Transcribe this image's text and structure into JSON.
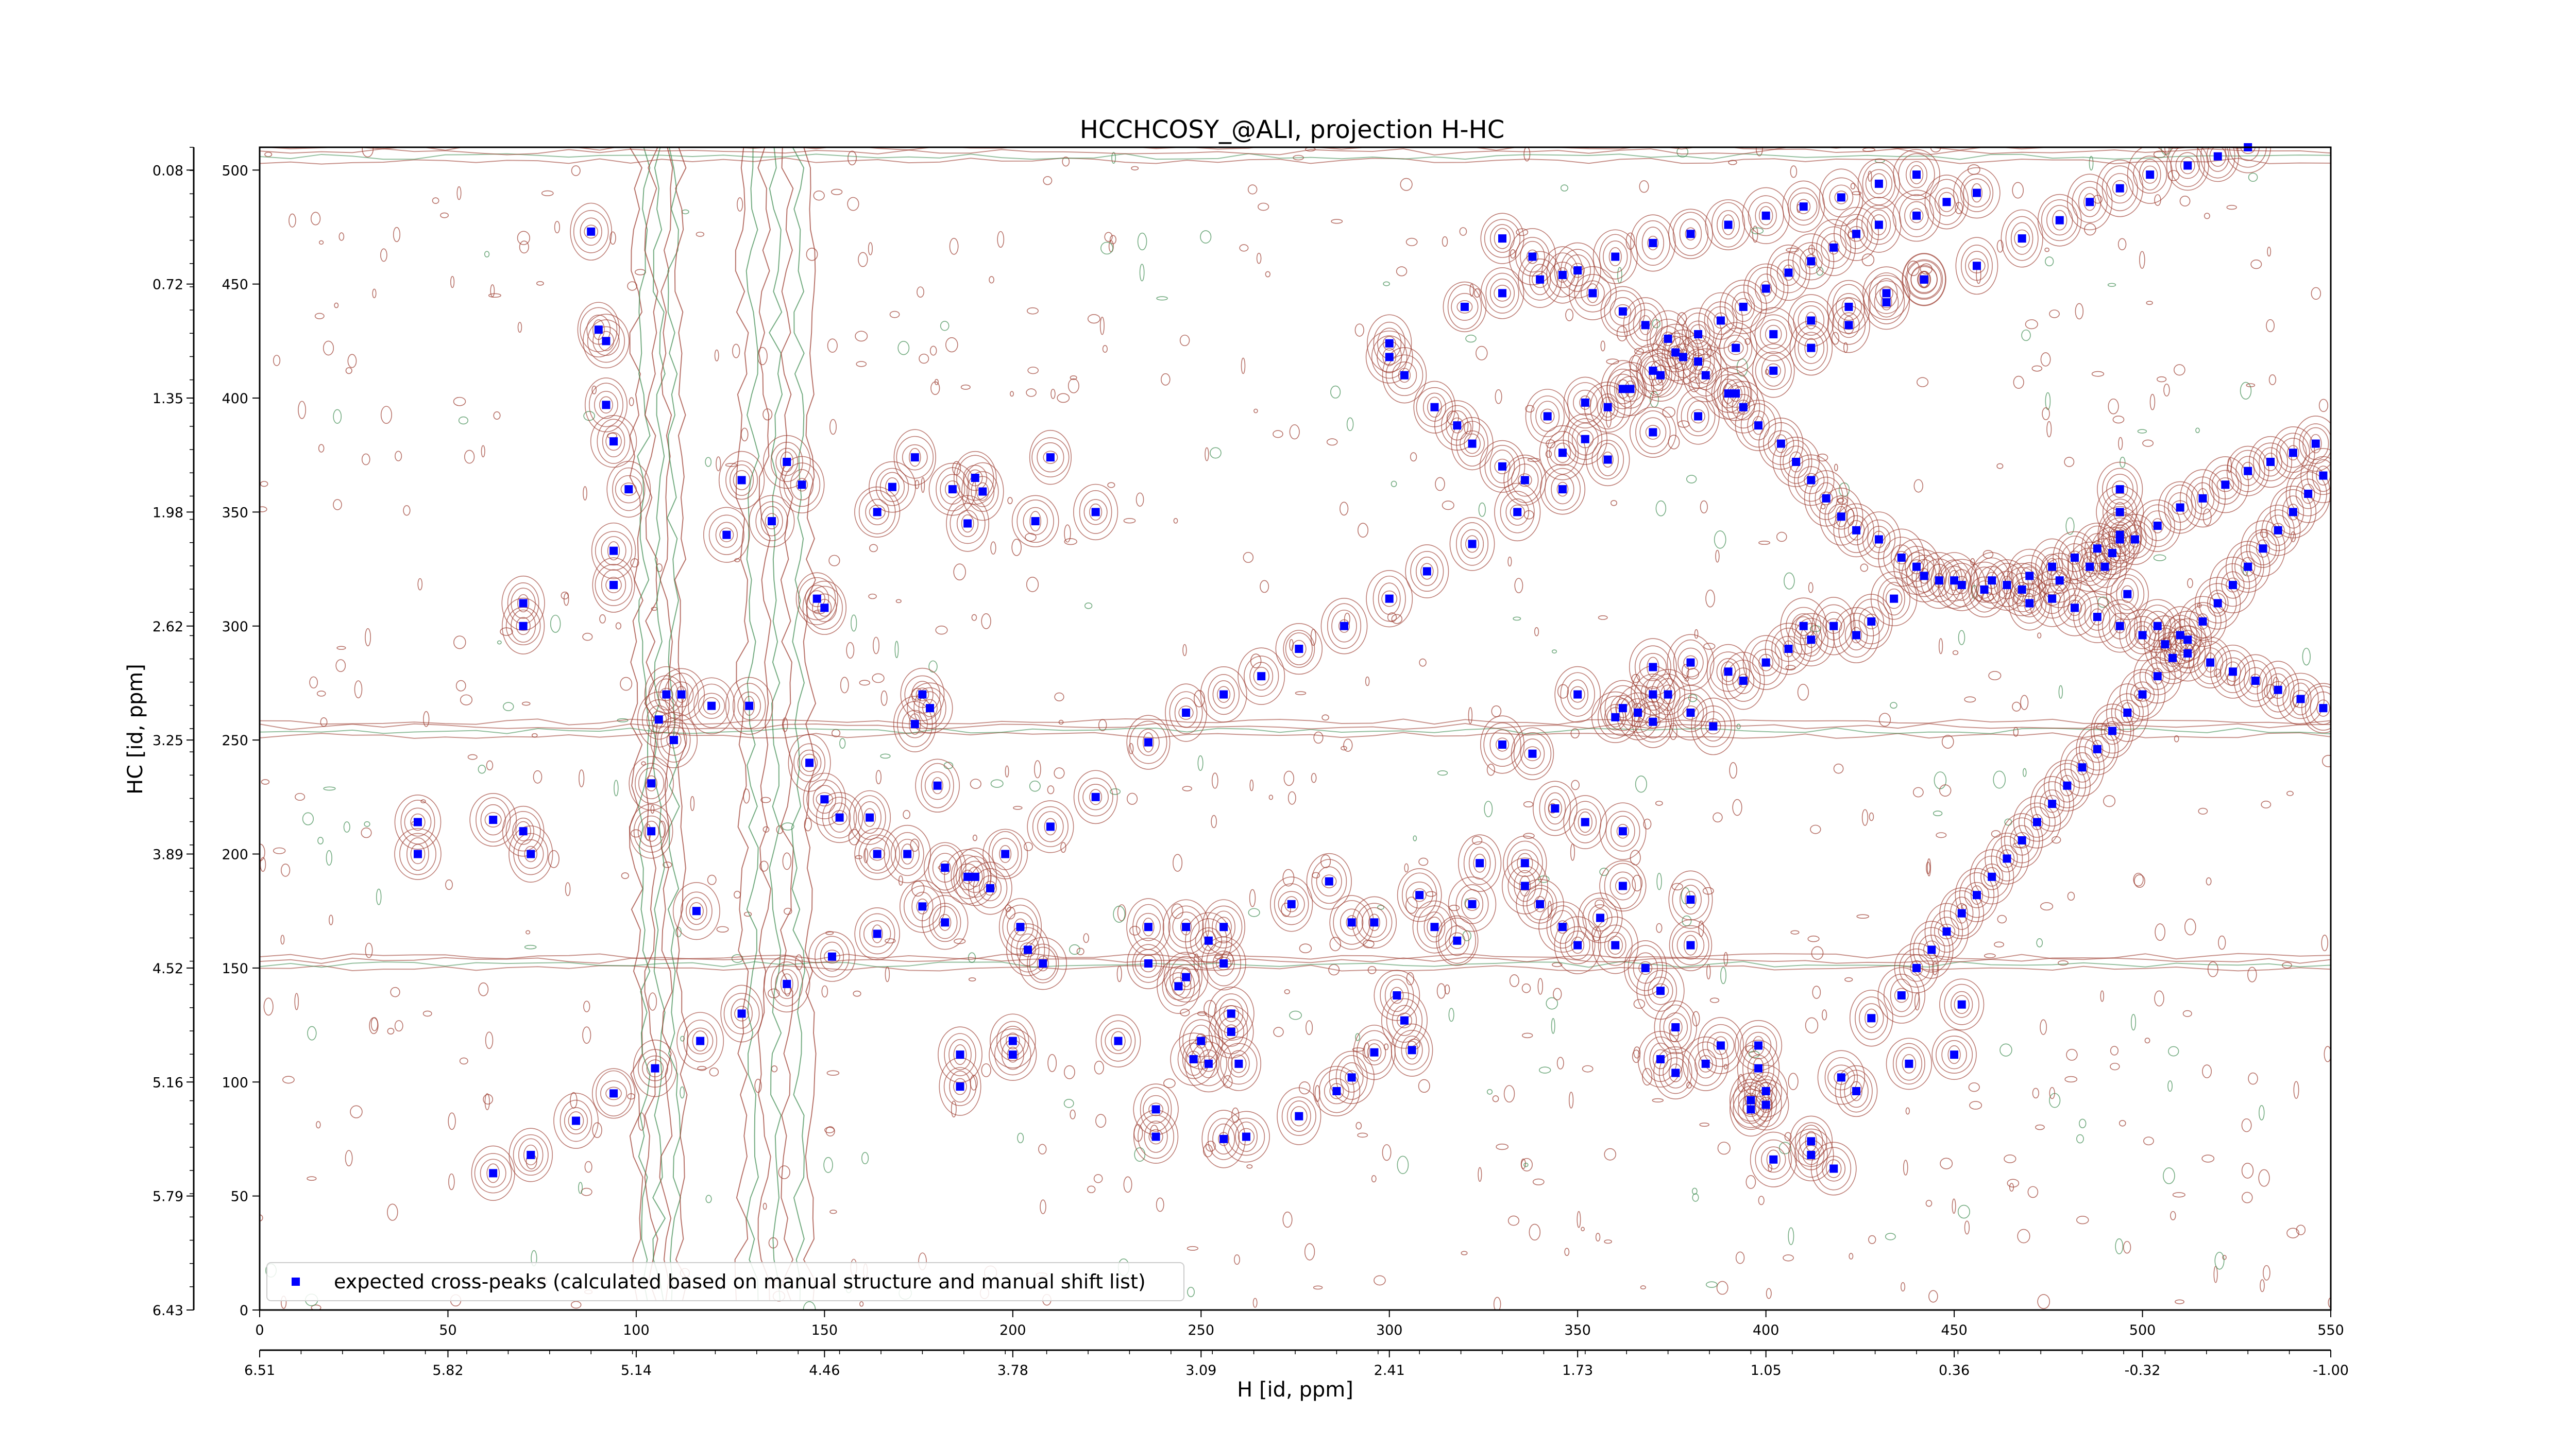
{
  "colors": {
    "marker": "#0000ff",
    "contour_positive": "#9b3a2e",
    "contour_negative": "#3c8a4f",
    "axes": "#000000"
  },
  "chart_data": {
    "type": "scatter",
    "title": "HCCHCOSY_@ALI, projection H-HC",
    "xlabel": "H [id, ppm]",
    "ylabel": "HC [id, ppm]",
    "x_point_range": [
      0,
      550
    ],
    "y_point_range": [
      0,
      510
    ],
    "x_point_ticks": [
      "0",
      "50",
      "100",
      "150",
      "200",
      "250",
      "300",
      "350",
      "400",
      "450",
      "500",
      "550"
    ],
    "x_ppm_ticks": [
      "6.51",
      "5.82",
      "5.14",
      "4.46",
      "3.78",
      "3.09",
      "2.41",
      "1.73",
      "1.05",
      "0.36",
      "-0.32",
      "-1.00"
    ],
    "y_point_ticks": [
      "0",
      "50",
      "100",
      "150",
      "200",
      "250",
      "300",
      "350",
      "400",
      "450",
      "500"
    ],
    "y_ppm_ticks": [
      "6.43",
      "5.79",
      "5.16",
      "4.52",
      "3.89",
      "3.25",
      "2.62",
      "1.98",
      "1.35",
      "0.72",
      "0.08"
    ],
    "legend": {
      "position": "lower left",
      "label": "expected cross-peaks (calculated based on manual structure and manual shift list)"
    },
    "diagonal_series": {
      "name": "diagonal peaks",
      "points": [
        [
          62,
          60
        ],
        [
          72,
          68
        ],
        [
          84,
          83
        ],
        [
          94,
          95
        ],
        [
          105,
          106
        ],
        [
          117,
          118
        ],
        [
          128,
          130
        ],
        [
          140,
          143
        ],
        [
          152,
          155
        ],
        [
          164,
          165
        ],
        [
          176,
          177
        ],
        [
          188,
          190
        ],
        [
          198,
          200
        ],
        [
          210,
          212
        ],
        [
          222,
          225
        ],
        [
          236,
          249
        ],
        [
          246,
          262
        ],
        [
          256,
          270
        ],
        [
          266,
          278
        ],
        [
          276,
          290
        ],
        [
          288,
          300
        ],
        [
          300,
          312
        ],
        [
          310,
          324
        ],
        [
          322,
          336
        ],
        [
          334,
          350
        ],
        [
          346,
          360
        ],
        [
          358,
          373
        ],
        [
          370,
          385
        ],
        [
          382,
          392
        ],
        [
          392,
          402
        ],
        [
          402,
          412
        ],
        [
          412,
          422
        ],
        [
          422,
          432
        ],
        [
          432,
          442
        ],
        [
          442,
          452
        ]
      ]
    },
    "cross_peaks": [
      [
        42,
        200
      ],
      [
        42,
        214
      ],
      [
        62,
        215
      ],
      [
        70,
        210
      ],
      [
        72,
        200
      ],
      [
        70,
        310
      ],
      [
        70,
        300
      ],
      [
        92,
        425
      ],
      [
        90,
        430
      ],
      [
        88,
        473
      ],
      [
        92,
        397
      ],
      [
        94,
        381
      ],
      [
        98,
        360
      ],
      [
        94,
        333
      ],
      [
        94,
        318
      ],
      [
        106,
        259
      ],
      [
        108,
        270
      ],
      [
        110,
        250
      ],
      [
        104,
        231
      ],
      [
        104,
        210
      ],
      [
        116,
        175
      ],
      [
        112,
        270
      ],
      [
        120,
        265
      ],
      [
        130,
        265
      ],
      [
        124,
        340
      ],
      [
        128,
        364
      ],
      [
        136,
        346
      ],
      [
        140,
        372
      ],
      [
        144,
        362
      ],
      [
        148,
        312
      ],
      [
        150,
        308
      ],
      [
        146,
        240
      ],
      [
        154,
        216
      ],
      [
        150,
        224
      ],
      [
        162,
        216
      ],
      [
        164,
        200
      ],
      [
        182,
        194
      ],
      [
        172,
        200
      ],
      [
        180,
        230
      ],
      [
        178,
        264
      ],
      [
        174,
        257
      ],
      [
        176,
        270
      ],
      [
        184,
        360
      ],
      [
        188,
        345
      ],
      [
        192,
        359
      ],
      [
        164,
        350
      ],
      [
        168,
        361
      ],
      [
        174,
        374
      ],
      [
        190,
        365
      ],
      [
        182,
        170
      ],
      [
        190,
        190
      ],
      [
        194,
        185
      ],
      [
        202,
        168
      ],
      [
        204,
        158
      ],
      [
        208,
        152
      ],
      [
        186,
        98
      ],
      [
        186,
        112
      ],
      [
        200,
        118
      ],
      [
        200,
        112
      ],
      [
        222,
        350
      ],
      [
        210,
        374
      ],
      [
        206,
        346
      ],
      [
        236,
        168
      ],
      [
        236,
        152
      ],
      [
        246,
        168
      ],
      [
        252,
        162
      ],
      [
        256,
        168
      ],
      [
        256,
        152
      ],
      [
        246,
        146
      ],
      [
        258,
        130
      ],
      [
        244,
        142
      ],
      [
        250,
        118
      ],
      [
        258,
        122
      ],
      [
        260,
        108
      ],
      [
        228,
        118
      ],
      [
        238,
        88
      ],
      [
        248,
        110
      ],
      [
        252,
        108
      ],
      [
        256,
        75
      ],
      [
        238,
        76
      ],
      [
        262,
        76
      ],
      [
        276,
        85
      ],
      [
        286,
        96
      ],
      [
        290,
        102
      ],
      [
        296,
        113
      ],
      [
        302,
        138
      ],
      [
        304,
        127
      ],
      [
        306,
        114
      ],
      [
        274,
        178
      ],
      [
        284,
        188
      ],
      [
        290,
        170
      ],
      [
        296,
        170
      ],
      [
        308,
        182
      ],
      [
        312,
        168
      ],
      [
        318,
        162
      ],
      [
        322,
        178
      ],
      [
        324,
        196
      ],
      [
        336,
        196
      ],
      [
        336,
        186
      ],
      [
        340,
        178
      ],
      [
        346,
        168
      ],
      [
        350,
        160
      ],
      [
        356,
        172
      ],
      [
        360,
        160
      ],
      [
        368,
        150
      ],
      [
        372,
        140
      ],
      [
        376,
        124
      ],
      [
        372,
        110
      ],
      [
        376,
        104
      ],
      [
        384,
        108
      ],
      [
        388,
        116
      ],
      [
        398,
        116
      ],
      [
        398,
        106
      ],
      [
        400,
        96
      ],
      [
        396,
        92
      ],
      [
        396,
        88
      ],
      [
        402,
        66
      ],
      [
        412,
        68
      ],
      [
        412,
        74
      ],
      [
        418,
        62
      ],
      [
        424,
        96
      ],
      [
        438,
        108
      ],
      [
        450,
        112
      ],
      [
        452,
        134
      ],
      [
        380,
        160
      ],
      [
        380,
        180
      ],
      [
        362,
        186
      ],
      [
        362,
        210
      ],
      [
        352,
        214
      ],
      [
        344,
        220
      ],
      [
        338,
        244
      ],
      [
        330,
        248
      ],
      [
        350,
        270
      ],
      [
        360,
        260
      ],
      [
        362,
        264
      ],
      [
        366,
        262
      ],
      [
        370,
        270
      ],
      [
        370,
        258
      ],
      [
        374,
        270
      ],
      [
        380,
        262
      ],
      [
        386,
        256
      ],
      [
        370,
        282
      ],
      [
        380,
        284
      ],
      [
        390,
        280
      ],
      [
        394,
        276
      ],
      [
        400,
        284
      ],
      [
        406,
        290
      ],
      [
        410,
        300
      ],
      [
        412,
        294
      ],
      [
        418,
        300
      ],
      [
        424,
        296
      ],
      [
        428,
        302
      ],
      [
        434,
        312
      ],
      [
        442,
        322
      ],
      [
        450,
        320
      ],
      [
        470,
        310
      ],
      [
        478,
        320
      ],
      [
        486,
        326
      ],
      [
        492,
        332
      ],
      [
        498,
        338
      ],
      [
        504,
        344
      ],
      [
        510,
        352
      ],
      [
        516,
        356
      ],
      [
        522,
        362
      ],
      [
        528,
        368
      ],
      [
        534,
        372
      ],
      [
        540,
        376
      ],
      [
        546,
        380
      ],
      [
        300,
        418
      ],
      [
        300,
        424
      ],
      [
        304,
        410
      ],
      [
        312,
        396
      ],
      [
        318,
        388
      ],
      [
        322,
        380
      ],
      [
        330,
        370
      ],
      [
        336,
        364
      ],
      [
        346,
        376
      ],
      [
        352,
        382
      ],
      [
        358,
        396
      ],
      [
        364,
        404
      ],
      [
        370,
        412
      ],
      [
        376,
        420
      ],
      [
        382,
        428
      ],
      [
        388,
        434
      ],
      [
        394,
        440
      ],
      [
        400,
        448
      ],
      [
        406,
        455
      ],
      [
        412,
        460
      ],
      [
        418,
        466
      ],
      [
        424,
        472
      ],
      [
        430,
        476
      ],
      [
        440,
        480
      ],
      [
        448,
        486
      ],
      [
        456,
        490
      ],
      [
        330,
        470
      ],
      [
        338,
        462
      ],
      [
        346,
        454
      ],
      [
        354,
        446
      ],
      [
        362,
        438
      ],
      [
        368,
        432
      ],
      [
        374,
        426
      ],
      [
        378,
        418
      ],
      [
        384,
        410
      ],
      [
        390,
        402
      ],
      [
        394,
        396
      ],
      [
        398,
        388
      ],
      [
        404,
        380
      ],
      [
        408,
        372
      ],
      [
        412,
        364
      ],
      [
        416,
        356
      ],
      [
        420,
        348
      ],
      [
        424,
        342
      ],
      [
        430,
        338
      ],
      [
        436,
        330
      ],
      [
        440,
        326
      ],
      [
        446,
        320
      ],
      [
        452,
        318
      ],
      [
        458,
        316
      ],
      [
        464,
        318
      ],
      [
        470,
        322
      ],
      [
        476,
        326
      ],
      [
        482,
        330
      ],
      [
        488,
        334
      ],
      [
        494,
        340
      ],
      [
        320,
        440
      ],
      [
        330,
        446
      ],
      [
        340,
        452
      ],
      [
        350,
        456
      ],
      [
        360,
        462
      ],
      [
        370,
        468
      ],
      [
        380,
        472
      ],
      [
        390,
        476
      ],
      [
        400,
        480
      ],
      [
        410,
        484
      ],
      [
        420,
        488
      ],
      [
        430,
        494
      ],
      [
        440,
        498
      ],
      [
        342,
        392
      ],
      [
        352,
        398
      ],
      [
        362,
        404
      ],
      [
        372,
        410
      ],
      [
        382,
        416
      ],
      [
        392,
        422
      ],
      [
        402,
        428
      ],
      [
        412,
        434
      ],
      [
        422,
        440
      ],
      [
        432,
        446
      ],
      [
        442,
        452
      ],
      [
        456,
        458
      ],
      [
        468,
        470
      ],
      [
        478,
        478
      ],
      [
        486,
        486
      ],
      [
        494,
        492
      ],
      [
        502,
        498
      ],
      [
        512,
        502
      ],
      [
        520,
        506
      ],
      [
        528,
        510
      ],
      [
        494,
        360
      ],
      [
        494,
        350
      ],
      [
        494,
        338
      ],
      [
        490,
        326
      ],
      [
        496,
        314
      ],
      [
        504,
        300
      ],
      [
        510,
        296
      ],
      [
        460,
        320
      ],
      [
        468,
        316
      ],
      [
        476,
        312
      ],
      [
        482,
        308
      ],
      [
        488,
        304
      ],
      [
        494,
        300
      ],
      [
        500,
        296
      ],
      [
        506,
        292
      ],
      [
        512,
        288
      ],
      [
        518,
        284
      ],
      [
        524,
        280
      ],
      [
        530,
        276
      ],
      [
        536,
        272
      ],
      [
        542,
        268
      ],
      [
        548,
        264
      ],
      [
        400,
        90
      ],
      [
        420,
        102
      ],
      [
        428,
        128
      ],
      [
        436,
        138
      ],
      [
        440,
        150
      ],
      [
        444,
        158
      ],
      [
        448,
        166
      ],
      [
        452,
        174
      ],
      [
        456,
        182
      ],
      [
        460,
        190
      ],
      [
        464,
        198
      ],
      [
        468,
        206
      ],
      [
        472,
        214
      ],
      [
        476,
        222
      ],
      [
        480,
        230
      ],
      [
        484,
        238
      ],
      [
        488,
        246
      ],
      [
        492,
        254
      ],
      [
        496,
        262
      ],
      [
        500,
        270
      ],
      [
        504,
        278
      ],
      [
        508,
        286
      ],
      [
        512,
        294
      ],
      [
        516,
        302
      ],
      [
        520,
        310
      ],
      [
        524,
        318
      ],
      [
        528,
        326
      ],
      [
        532,
        334
      ],
      [
        536,
        342
      ],
      [
        540,
        350
      ],
      [
        544,
        358
      ],
      [
        548,
        366
      ]
    ]
  }
}
